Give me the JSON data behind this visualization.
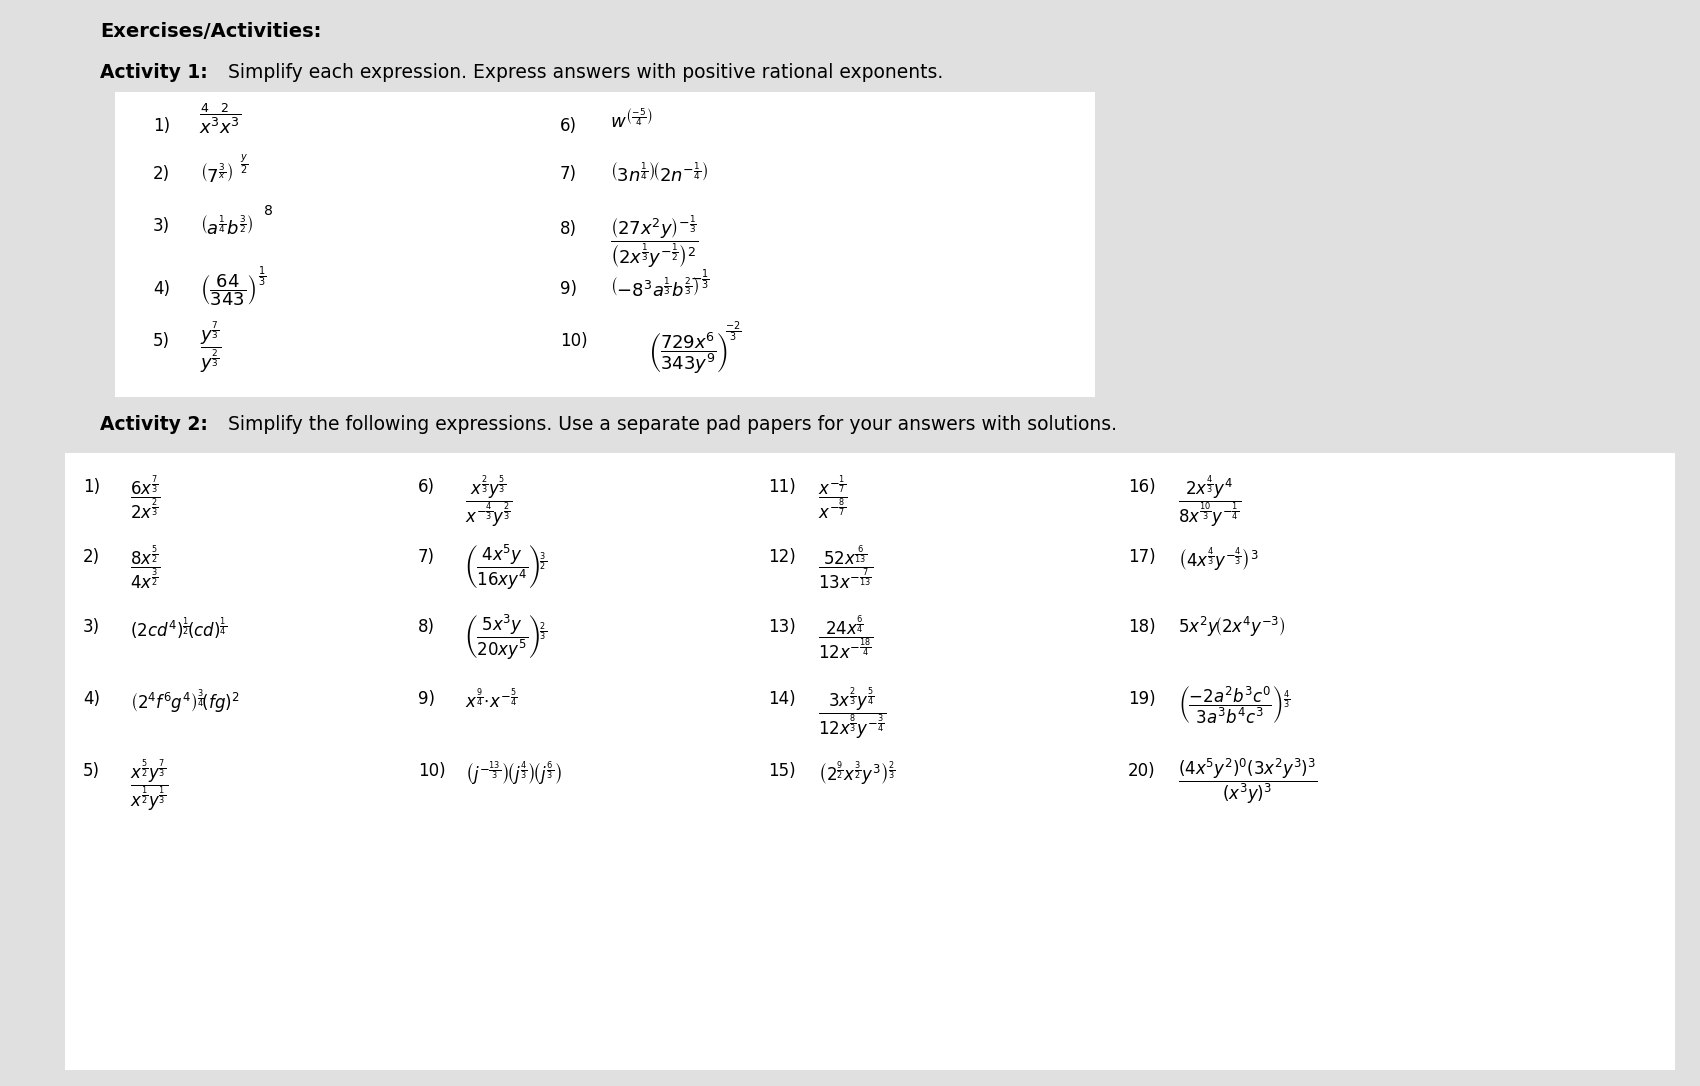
{
  "bg_color": "#e0e0e0",
  "white": "#ffffff",
  "black": "#000000",
  "fig_w": 17.0,
  "fig_h": 10.86,
  "dpi": 100,
  "header": "Exercises/Activities:",
  "act1_bold": "Activity 1:",
  "act1_rest": " Simplify each expression. Express answers with positive rational exponents.",
  "act2_bold": "Activity 2:",
  "act2_rest": " Simplify the following expressions. Use a separate pad papers for your answers with solutions."
}
